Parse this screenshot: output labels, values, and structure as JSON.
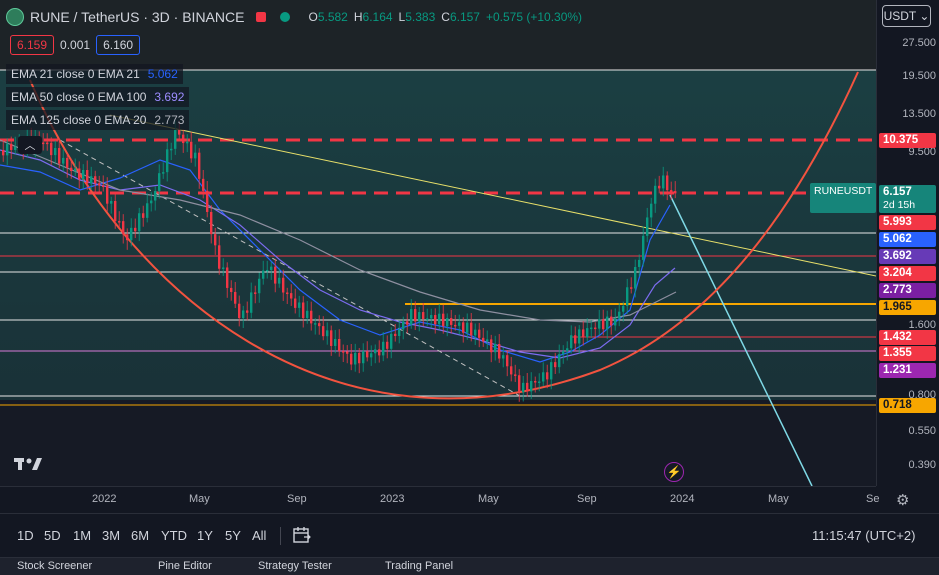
{
  "header": {
    "title": "RUNE / TetherUS · 3D · BINANCE",
    "ohlc": [
      {
        "k": "O",
        "v": "5.582"
      },
      {
        "k": "H",
        "v": "6.164"
      },
      {
        "k": "L",
        "v": "5.383"
      },
      {
        "k": "C",
        "v": "6.157"
      },
      {
        "k": "",
        "v": "+0.575 (+10.30%)"
      }
    ],
    "bid": "6.159",
    "spread": "0.001",
    "ask": "6.160"
  },
  "indicators": [
    {
      "name": "EMA 21 close 0 EMA 21",
      "value": "5.062",
      "color": "#2962ff"
    },
    {
      "name": "EMA 50 close 0 EMA 100",
      "value": "3.692",
      "color": "#9c8cff"
    },
    {
      "name": "EMA 125 close 0 EMA 20",
      "value": "2.773",
      "color": "#9598a1"
    }
  ],
  "currency_button": "USDT ⌄",
  "price_axis": [
    "27.500",
    "19.500",
    "13.500",
    "9.500",
    "0.800",
    "0.550",
    "0.390",
    "1.600"
  ],
  "price_tags": [
    {
      "text": "10.375",
      "bg": "#f23645"
    },
    {
      "text": "5.993",
      "bg": "#f23645"
    },
    {
      "text": "5.062",
      "bg": "#2962ff"
    },
    {
      "text": "3.692",
      "bg": "#673ab7"
    },
    {
      "text": "3.204",
      "bg": "#f23645"
    },
    {
      "text": "2.773",
      "bg": "#7b1fa2"
    },
    {
      "text": "1.965",
      "bg": "#f7a600"
    },
    {
      "text": "1.432",
      "bg": "#f23645"
    },
    {
      "text": "1.355",
      "bg": "#f23645"
    },
    {
      "text": "1.231",
      "bg": "#9c27b0"
    },
    {
      "text": "0.718",
      "bg": "#f7a600"
    }
  ],
  "symbol_tag": {
    "name": "RUNEUSDT",
    "price": "6.157",
    "countdown": "2d 15h"
  },
  "time_axis": [
    "2022",
    "May",
    "Sep",
    "2023",
    "May",
    "Sep",
    "2024",
    "May",
    "Se"
  ],
  "timeframes": [
    "1D",
    "5D",
    "1M",
    "3M",
    "6M",
    "YTD",
    "1Y",
    "5Y",
    "All"
  ],
  "clock": "11:15:47 (UTC+2)",
  "bottom_tabs": [
    "Stock Screener",
    "Pine Editor",
    "Strategy Tester",
    "Trading Panel"
  ],
  "icons": {
    "logo": "tradingview-logo",
    "bolt": "lightning-icon",
    "settings": "gear-icon",
    "calendar": "calendar-range-icon"
  },
  "colors": {
    "up": "#089981",
    "down": "#f23645",
    "accent": "#2962ff"
  }
}
